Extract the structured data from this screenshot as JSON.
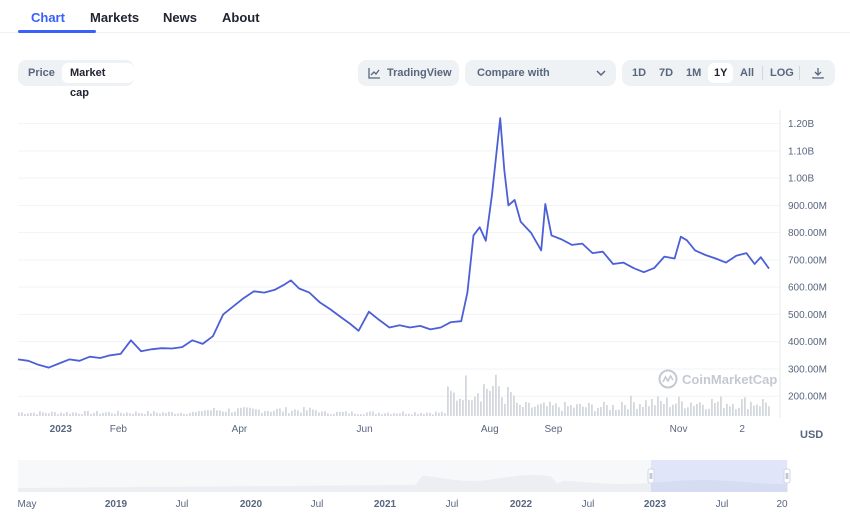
{
  "tabs": [
    {
      "label": "Chart",
      "active": true
    },
    {
      "label": "Markets",
      "active": false
    },
    {
      "label": "News",
      "active": false
    },
    {
      "label": "About",
      "active": false
    }
  ],
  "toolbar": {
    "metric_toggle": [
      {
        "label": "Price",
        "active": false
      },
      {
        "label": "Market cap",
        "active": true
      }
    ],
    "tradingview_label": "TradingView",
    "compare_label": "Compare with",
    "ranges": [
      {
        "label": "1D",
        "active": false
      },
      {
        "label": "7D",
        "active": false
      },
      {
        "label": "1M",
        "active": false
      },
      {
        "label": "1Y",
        "active": true
      },
      {
        "label": "All",
        "active": false
      }
    ],
    "log_label": "LOG",
    "download_icon": "download-icon"
  },
  "watermark": "CoinMarketCap",
  "colors": {
    "accent": "#3861fb",
    "line": "#4c5fd7",
    "volume": "#d3d7de"
  },
  "chart_data": {
    "type": "line",
    "metric": "Market cap",
    "currency": "USD",
    "ylim": [
      120000000,
      1250000000
    ],
    "yticks": [
      {
        "value": 200000000,
        "label": "200.00M"
      },
      {
        "value": 300000000,
        "label": "300.00M"
      },
      {
        "value": 400000000,
        "label": "400.00M"
      },
      {
        "value": 500000000,
        "label": "500.00M"
      },
      {
        "value": 600000000,
        "label": "600.00M"
      },
      {
        "value": 700000000,
        "label": "700.00M"
      },
      {
        "value": 800000000,
        "label": "800.00M"
      },
      {
        "value": 900000000,
        "label": "900.00M"
      },
      {
        "value": 1000000000,
        "label": "1.00B"
      },
      {
        "value": 1100000000,
        "label": "1.10B"
      },
      {
        "value": 1200000000,
        "label": "1.20B"
      }
    ],
    "xticks": [
      {
        "date": "2023-01-01",
        "label": "2023",
        "bold": true
      },
      {
        "date": "2023-02-01",
        "label": "Feb",
        "bold": false
      },
      {
        "date": "2023-04-01",
        "label": "Apr",
        "bold": false
      },
      {
        "date": "2023-06-01",
        "label": "Jun",
        "bold": false
      },
      {
        "date": "2023-08-01",
        "label": "Aug",
        "bold": false
      },
      {
        "date": "2023-09-01",
        "label": "Sep",
        "bold": false
      },
      {
        "date": "2023-11-01",
        "label": "Nov",
        "bold": false
      },
      {
        "date": "2023-12-02",
        "label": "2",
        "bold": false
      }
    ],
    "x_range": [
      "2022-12-17",
      "2023-12-18"
    ],
    "series": [
      {
        "points": [
          [
            "2022-12-17",
            335000000
          ],
          [
            "2022-12-22",
            330000000
          ],
          [
            "2022-12-27",
            315000000
          ],
          [
            "2023-01-01",
            305000000
          ],
          [
            "2023-01-06",
            320000000
          ],
          [
            "2023-01-11",
            335000000
          ],
          [
            "2023-01-16",
            330000000
          ],
          [
            "2023-01-21",
            345000000
          ],
          [
            "2023-01-26",
            340000000
          ],
          [
            "2023-01-31",
            350000000
          ],
          [
            "2023-02-05",
            355000000
          ],
          [
            "2023-02-10",
            405000000
          ],
          [
            "2023-02-15",
            365000000
          ],
          [
            "2023-02-20",
            372000000
          ],
          [
            "2023-02-25",
            376000000
          ],
          [
            "2023-03-02",
            375000000
          ],
          [
            "2023-03-07",
            380000000
          ],
          [
            "2023-03-12",
            405000000
          ],
          [
            "2023-03-17",
            392000000
          ],
          [
            "2023-03-22",
            420000000
          ],
          [
            "2023-03-27",
            500000000
          ],
          [
            "2023-04-01",
            530000000
          ],
          [
            "2023-04-06",
            560000000
          ],
          [
            "2023-04-11",
            585000000
          ],
          [
            "2023-04-16",
            580000000
          ],
          [
            "2023-04-21",
            590000000
          ],
          [
            "2023-04-26",
            610000000
          ],
          [
            "2023-04-29",
            625000000
          ],
          [
            "2023-05-03",
            595000000
          ],
          [
            "2023-05-08",
            580000000
          ],
          [
            "2023-05-13",
            545000000
          ],
          [
            "2023-05-18",
            520000000
          ],
          [
            "2023-05-23",
            492000000
          ],
          [
            "2023-05-28",
            465000000
          ],
          [
            "2023-06-01",
            440000000
          ],
          [
            "2023-06-06",
            510000000
          ],
          [
            "2023-06-11",
            480000000
          ],
          [
            "2023-06-16",
            452000000
          ],
          [
            "2023-06-21",
            460000000
          ],
          [
            "2023-06-26",
            452000000
          ],
          [
            "2023-07-01",
            458000000
          ],
          [
            "2023-07-06",
            445000000
          ],
          [
            "2023-07-11",
            452000000
          ],
          [
            "2023-07-16",
            472000000
          ],
          [
            "2023-07-21",
            475000000
          ],
          [
            "2023-07-24",
            580000000
          ],
          [
            "2023-07-27",
            790000000
          ],
          [
            "2023-07-30",
            820000000
          ],
          [
            "2023-08-02",
            770000000
          ],
          [
            "2023-08-05",
            940000000
          ],
          [
            "2023-08-07",
            1080000000
          ],
          [
            "2023-08-09",
            1220000000
          ],
          [
            "2023-08-11",
            1030000000
          ],
          [
            "2023-08-13",
            900000000
          ],
          [
            "2023-08-16",
            920000000
          ],
          [
            "2023-08-19",
            840000000
          ],
          [
            "2023-08-24",
            800000000
          ],
          [
            "2023-08-29",
            735000000
          ],
          [
            "2023-08-31",
            905000000
          ],
          [
            "2023-09-03",
            790000000
          ],
          [
            "2023-09-08",
            775000000
          ],
          [
            "2023-09-13",
            755000000
          ],
          [
            "2023-09-18",
            760000000
          ],
          [
            "2023-09-23",
            725000000
          ],
          [
            "2023-09-28",
            730000000
          ],
          [
            "2023-10-03",
            685000000
          ],
          [
            "2023-10-08",
            690000000
          ],
          [
            "2023-10-13",
            670000000
          ],
          [
            "2023-10-18",
            655000000
          ],
          [
            "2023-10-23",
            670000000
          ],
          [
            "2023-10-28",
            712000000
          ],
          [
            "2023-11-02",
            705000000
          ],
          [
            "2023-11-05",
            785000000
          ],
          [
            "2023-11-08",
            772000000
          ],
          [
            "2023-11-12",
            735000000
          ],
          [
            "2023-11-17",
            718000000
          ],
          [
            "2023-11-22",
            705000000
          ],
          [
            "2023-11-27",
            690000000
          ],
          [
            "2023-12-02",
            715000000
          ],
          [
            "2023-12-07",
            725000000
          ],
          [
            "2023-12-11",
            685000000
          ],
          [
            "2023-12-14",
            710000000
          ],
          [
            "2023-12-18",
            668000000
          ]
        ]
      }
    ],
    "volume_bars": true,
    "navigator": {
      "labels": [
        {
          "label": "May",
          "bold": false
        },
        {
          "label": "2019",
          "bold": true
        },
        {
          "label": "Jul",
          "bold": false
        },
        {
          "label": "2020",
          "bold": true
        },
        {
          "label": "Jul",
          "bold": false
        },
        {
          "label": "2021",
          "bold": true
        },
        {
          "label": "Jul",
          "bold": false
        },
        {
          "label": "2022",
          "bold": true
        },
        {
          "label": "Jul",
          "bold": false
        },
        {
          "label": "2023",
          "bold": true
        },
        {
          "label": "Jul",
          "bold": false
        },
        {
          "label": "20",
          "bold": false
        }
      ]
    },
    "grid": true,
    "legend": "none"
  }
}
